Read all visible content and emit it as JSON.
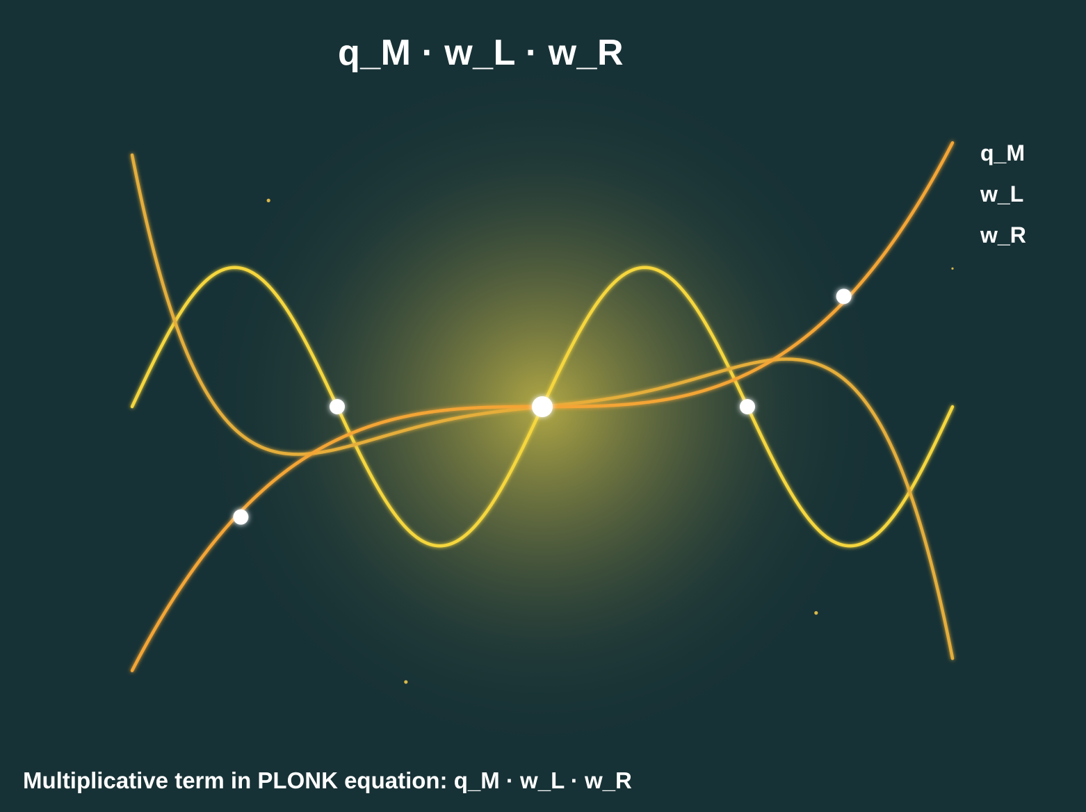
{
  "title": "q_M · w_L · w_R",
  "legend": {
    "items": [
      "q_M",
      "w_L",
      "w_R"
    ]
  },
  "caption": "Multiplicative term in PLONK equation: q_M · w_L · w_R",
  "colors": {
    "background": "#173236",
    "glow_center": "#b8ad45",
    "curve_yellow": "#f5d63d",
    "curve_gold": "#e5ae3a",
    "curve_orange": "#f4a535",
    "point": "#ffffff",
    "sparkle": "#d9b84a"
  },
  "diagram": {
    "domain": [
      -4,
      4
    ],
    "range": [
      -2.65,
      2.65
    ],
    "curves": [
      {
        "name": "yellow-sine-curve",
        "color_key": "curve_yellow",
        "kind": "sine",
        "amplitude": 1.35,
        "period": 4
      },
      {
        "name": "gold-cubic-curve",
        "color_key": "curve_gold",
        "kind": "poly",
        "coefficients": [
          0,
          0.1,
          0,
          0.05,
          0,
          -0.0059
        ]
      },
      {
        "name": "orange-cubic-curve",
        "color_key": "curve_orange",
        "kind": "cubic",
        "coefficient": 0.04
      }
    ],
    "points": [
      {
        "x": -2,
        "y": 0,
        "center": false
      },
      {
        "x": -2.94,
        "y": -1.07,
        "center": false
      },
      {
        "x": 0,
        "y": 0,
        "center": true
      },
      {
        "x": 2,
        "y": 0,
        "center": false
      },
      {
        "x": 2.94,
        "y": 1.07,
        "center": false
      }
    ],
    "sparkles": [
      {
        "x": -2.67,
        "y": 2.0
      },
      {
        "x": 4.0,
        "y": 1.34
      },
      {
        "x": 2.67,
        "y": -2.0
      },
      {
        "x": -1.33,
        "y": -2.67
      }
    ]
  }
}
